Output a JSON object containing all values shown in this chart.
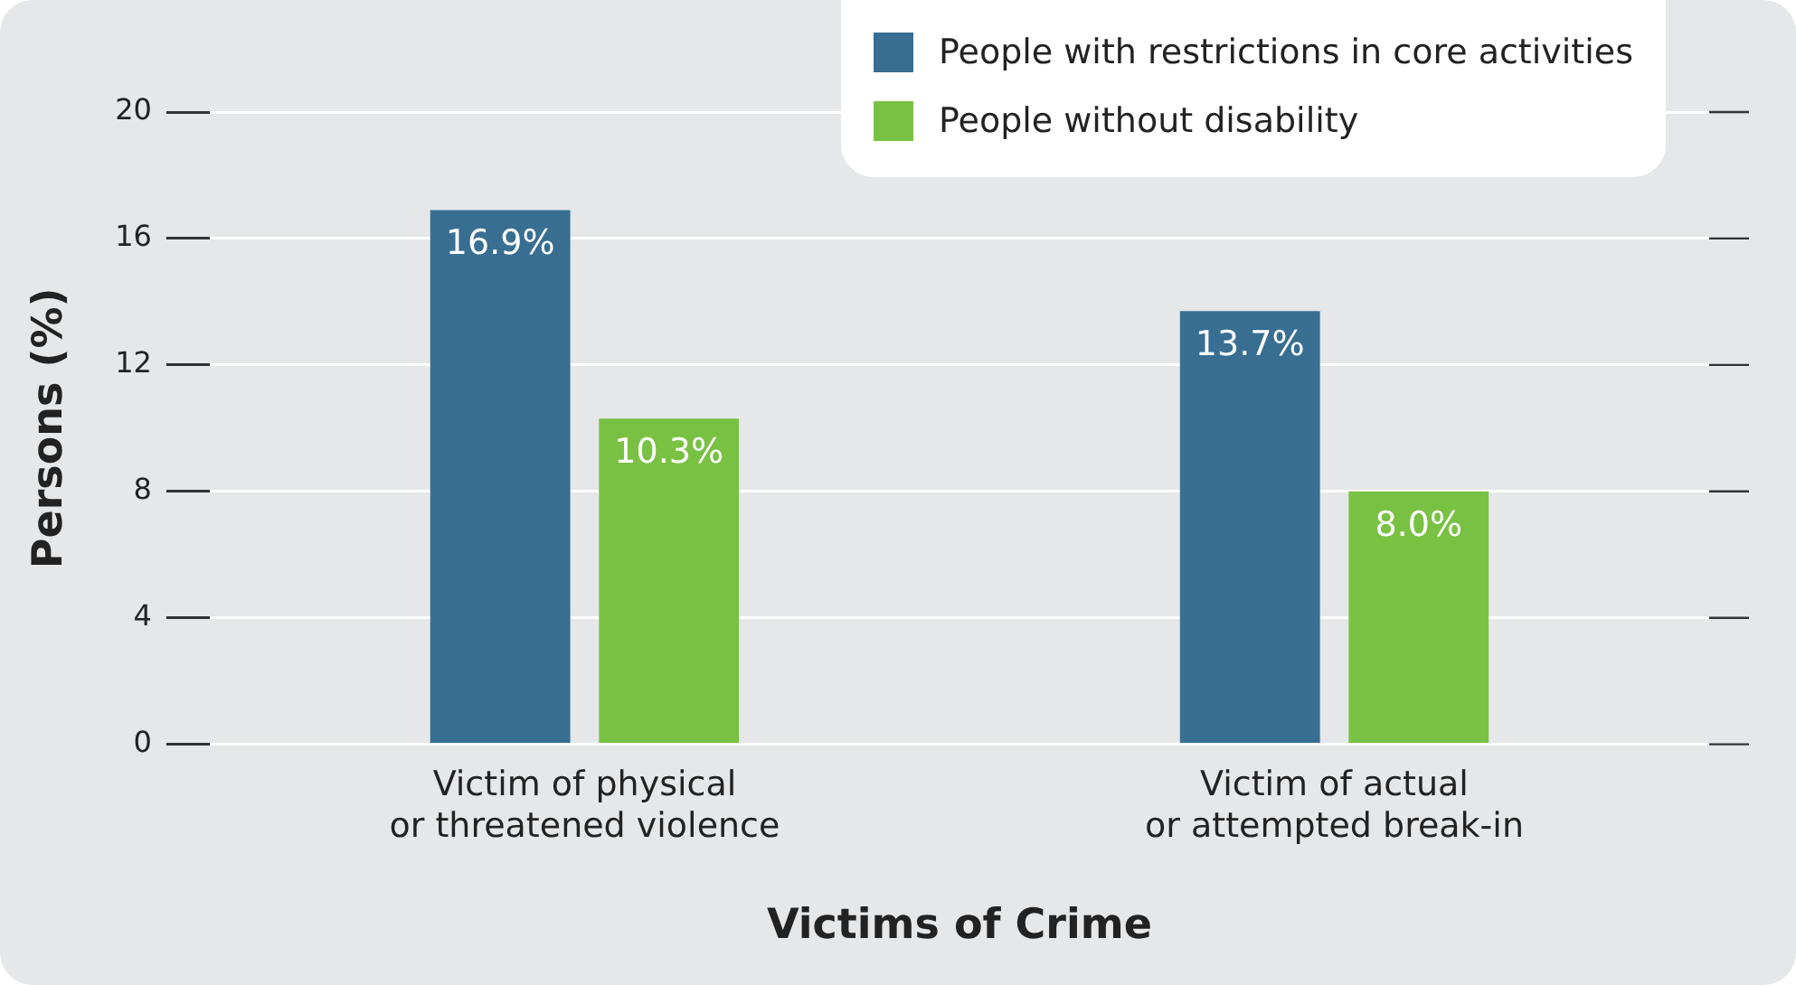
{
  "chart_data": {
    "type": "bar",
    "xlabel": "Victims of Crime",
    "ylabel": "Persons (%)",
    "categories": [
      "Victim of physical or threatened violence",
      "Victim of actual or attempted break-in"
    ],
    "series": [
      {
        "name": "People with restrictions in core activities",
        "color": "#376e92",
        "values": [
          16.9,
          13.7
        ],
        "value_labels": [
          "16.9%",
          "13.7%"
        ]
      },
      {
        "name": "People without disability",
        "color": "#79c143",
        "values": [
          10.3,
          8.0
        ],
        "value_labels": [
          "10.3%",
          "8.0%"
        ]
      }
    ],
    "ylim": [
      0,
      20
    ],
    "yticks": [
      0,
      4,
      8,
      12,
      16,
      20
    ],
    "grid": "y",
    "legend": "top right"
  }
}
